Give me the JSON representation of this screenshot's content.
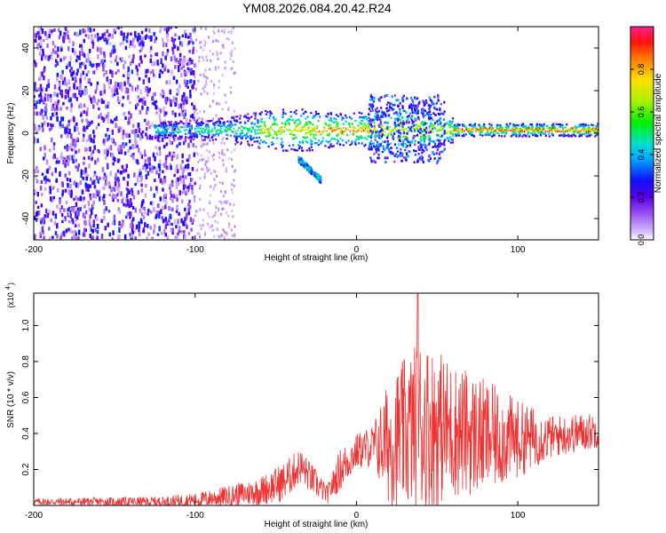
{
  "chart_data": [
    {
      "type": "heatmap",
      "title": "YM08.2026.084.20.42.R24",
      "xlabel": "Height of straight line (km)",
      "ylabel": "Frequency (Hz)",
      "xlim": [
        -200,
        150
      ],
      "ylim": [
        -50,
        50
      ],
      "xticks": [
        -200,
        -100,
        0,
        100
      ],
      "yticks": [
        -40,
        -20,
        0,
        20,
        40
      ],
      "colorbar": {
        "label": "Normalized spectral amplitude",
        "range": [
          0,
          1
        ],
        "ticks": [
          0.0,
          0.2,
          0.4,
          0.6,
          0.8
        ],
        "tick_labels": [
          "0.0",
          "0.2",
          "0.4",
          "0.6",
          "0.8"
        ]
      },
      "features": [
        {
          "name": "broadband-noise",
          "x_range": [
            -200,
            -100
          ],
          "y_range": [
            -50,
            50
          ],
          "amplitude": 0.25
        },
        {
          "name": "ridge",
          "x_range": [
            -120,
            150
          ],
          "center_hz": 1.5,
          "amplitude_max": 0.95
        },
        {
          "name": "branch",
          "x_range": [
            -36,
            -22
          ],
          "freq_range": [
            -12,
            -22
          ],
          "amplitude": 0.4
        },
        {
          "name": "scatter-cluster",
          "x_range": [
            8,
            55
          ],
          "y_range": [
            -14,
            18
          ],
          "amplitude": 0.35
        }
      ]
    },
    {
      "type": "line",
      "xlabel": "Height of straight line (km)",
      "ylabel": "SNR (10 * v/v)",
      "scale_label": "(x10",
      "scale_exponent": "4",
      "xlim": [
        -200,
        150
      ],
      "ylim": [
        0,
        1.18
      ],
      "xticks": [
        -200,
        -100,
        0,
        100
      ],
      "yticks": [
        0.2,
        0.4,
        0.6,
        0.8,
        1.0
      ],
      "ytick_labels": [
        "0.2",
        "0.4",
        "0.6",
        "0.8",
        "1.0"
      ],
      "series_color": "#ee3333",
      "envelope": [
        {
          "x": -200,
          "base": 0.02,
          "amp": 0.02
        },
        {
          "x": -120,
          "base": 0.02,
          "amp": 0.03
        },
        {
          "x": -100,
          "base": 0.03,
          "amp": 0.04
        },
        {
          "x": -80,
          "base": 0.05,
          "amp": 0.06
        },
        {
          "x": -60,
          "base": 0.08,
          "amp": 0.08
        },
        {
          "x": -45,
          "base": 0.13,
          "amp": 0.11
        },
        {
          "x": -35,
          "base": 0.22,
          "amp": 0.1
        },
        {
          "x": -25,
          "base": 0.12,
          "amp": 0.08
        },
        {
          "x": -18,
          "base": 0.06,
          "amp": 0.05
        },
        {
          "x": -10,
          "base": 0.2,
          "amp": 0.12
        },
        {
          "x": 0,
          "base": 0.3,
          "amp": 0.1
        },
        {
          "x": 10,
          "base": 0.33,
          "amp": 0.12
        },
        {
          "x": 20,
          "base": 0.35,
          "amp": 0.35
        },
        {
          "x": 40,
          "base": 0.45,
          "amp": 0.5
        },
        {
          "x": 60,
          "base": 0.42,
          "amp": 0.38
        },
        {
          "x": 80,
          "base": 0.38,
          "amp": 0.32
        },
        {
          "x": 100,
          "base": 0.37,
          "amp": 0.22
        },
        {
          "x": 120,
          "base": 0.38,
          "amp": 0.12
        },
        {
          "x": 150,
          "base": 0.42,
          "amp": 0.1
        }
      ],
      "peak": {
        "x": 38,
        "y": 1.18
      }
    }
  ],
  "colors": {
    "axis": "#000000",
    "line": "#ee3333",
    "background": "#ffffff"
  }
}
